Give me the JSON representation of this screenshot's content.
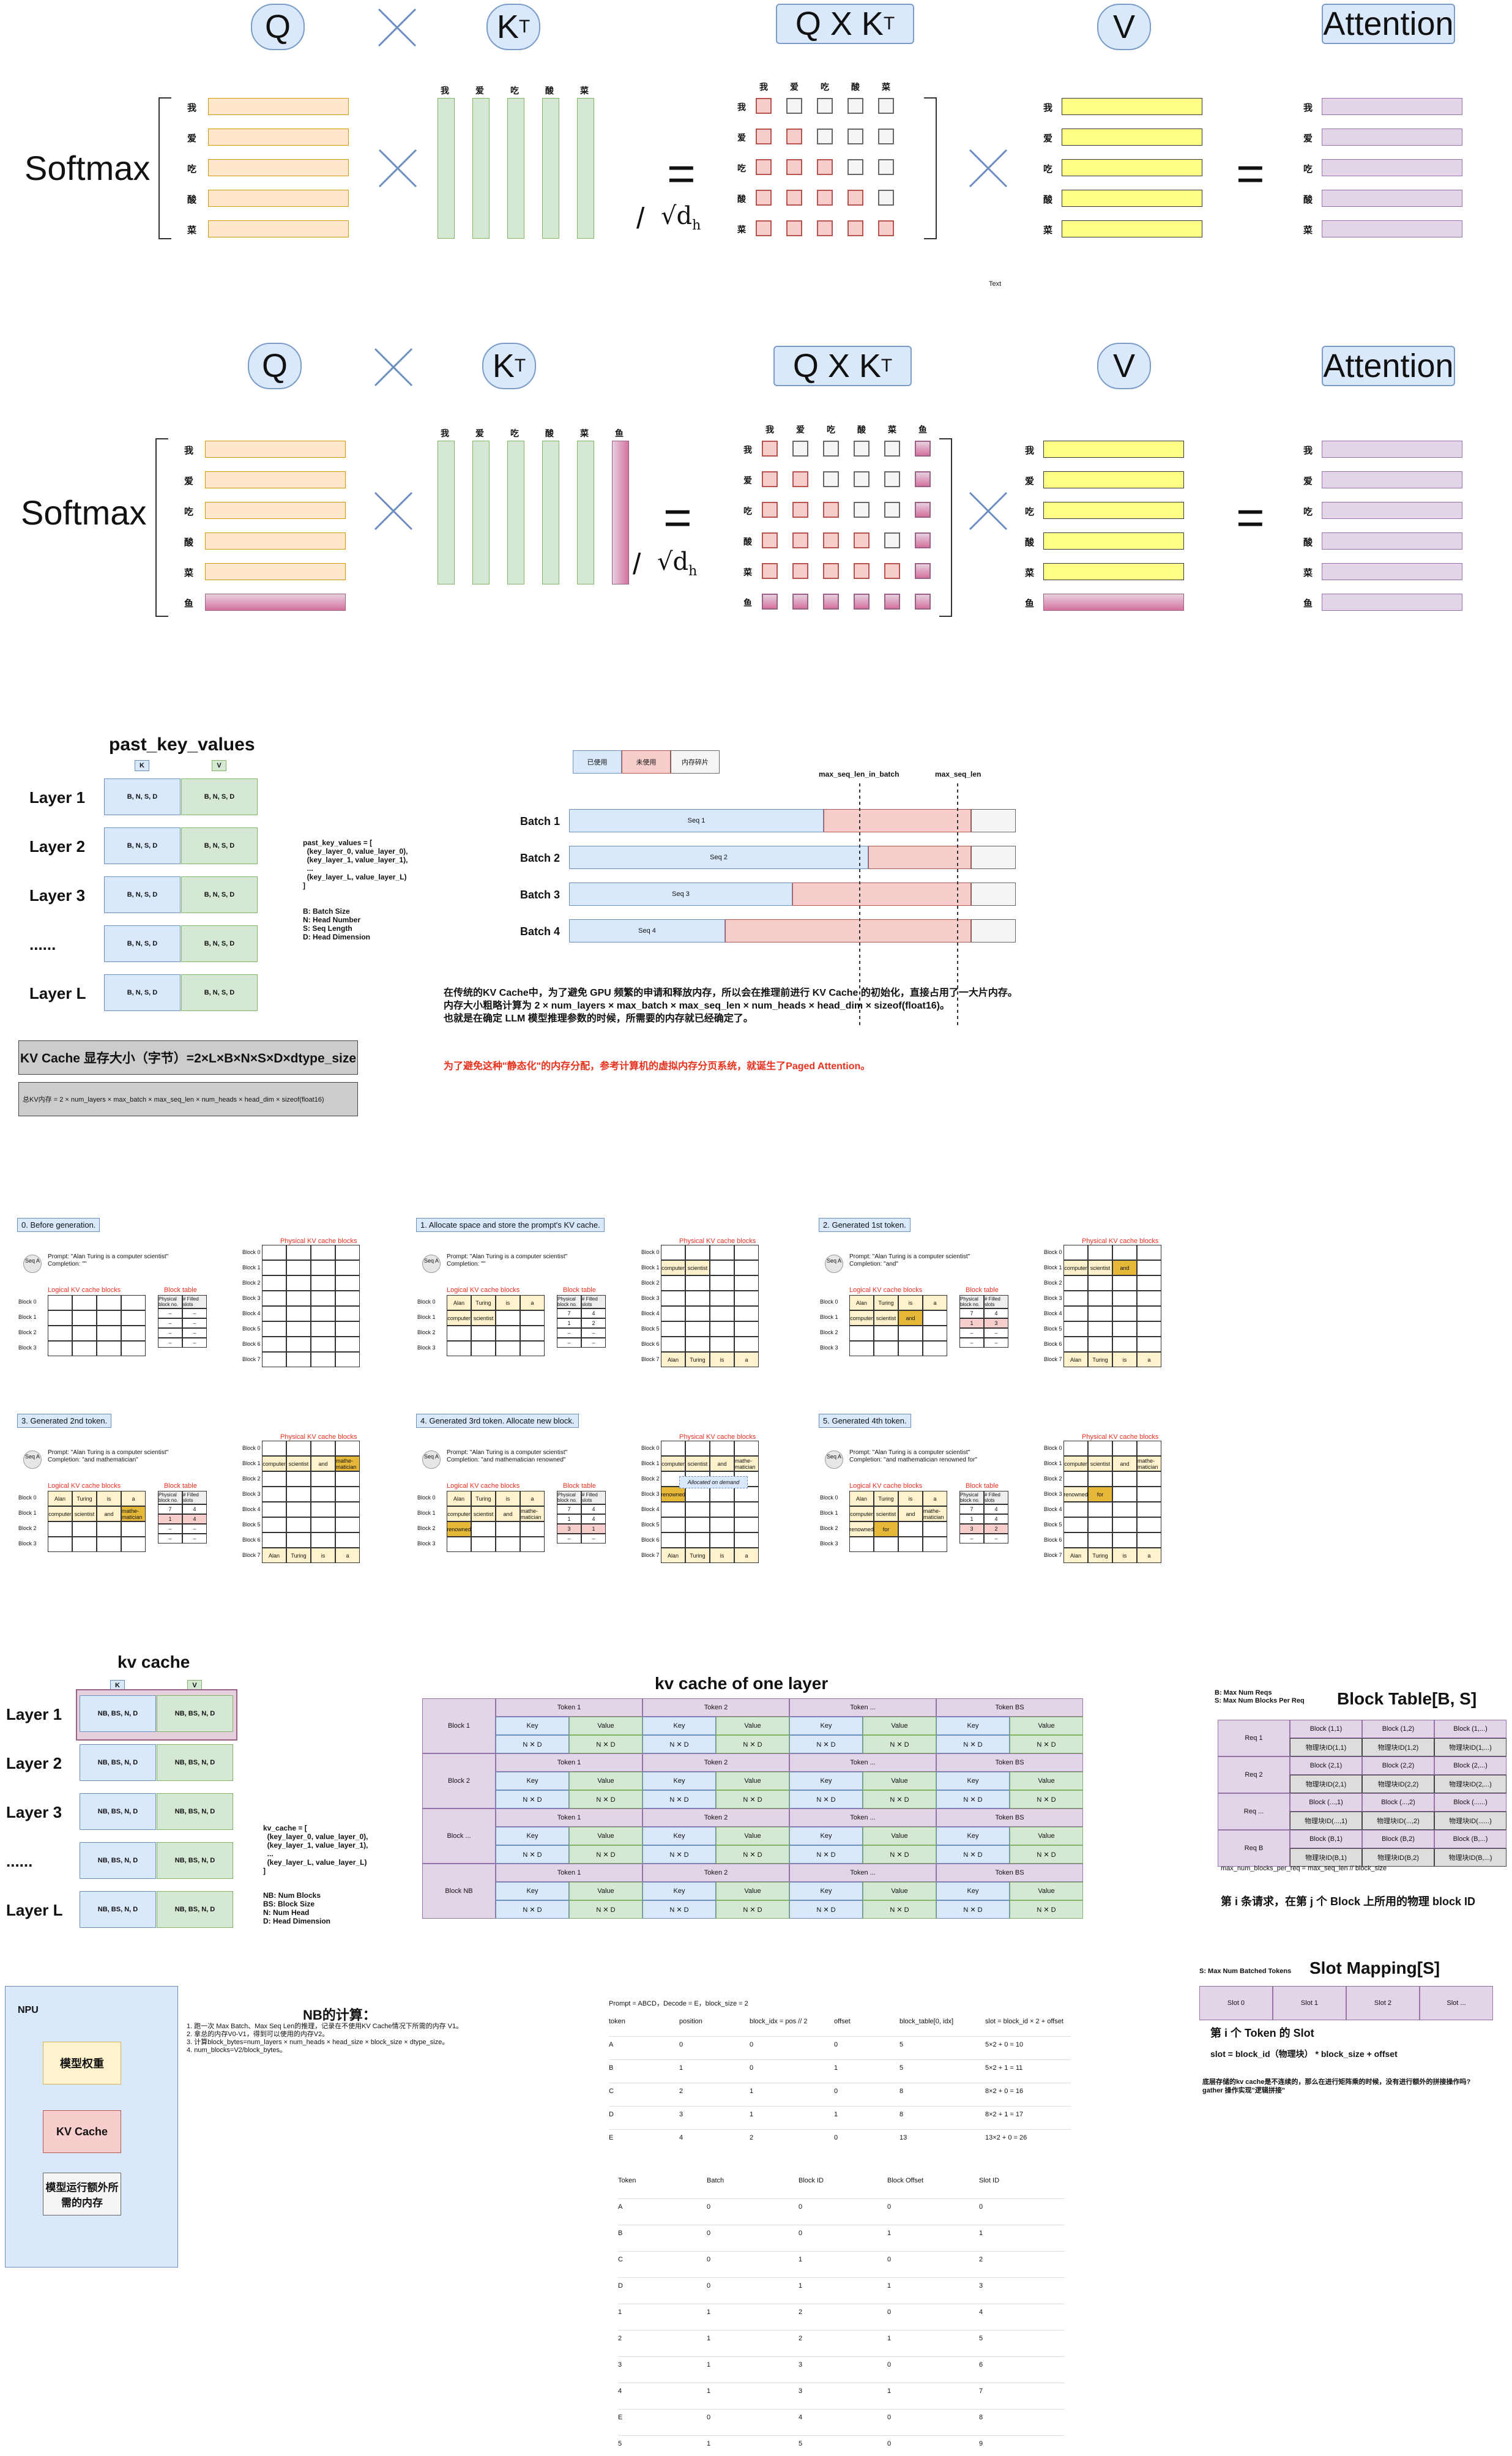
{
  "attn1": {
    "q": "Q",
    "kt": "K",
    "kt_sup": "T",
    "qxkt": "Q X K",
    "qxkt_sup": "T",
    "v": "V",
    "attention": "Attention",
    "softmax": "Softmax",
    "slash": "/",
    "sqrt": "√d",
    "sqrt_sub": "h",
    "rows": [
      "我",
      "爱",
      "吃",
      "酸",
      "菜"
    ],
    "cols": [
      "我",
      "爱",
      "吃",
      "酸",
      "菜"
    ],
    "text_note": "Text"
  },
  "attn2": {
    "q": "Q",
    "kt": "K",
    "kt_sup": "T",
    "qxkt": "Q X K",
    "qxkt_sup": "T",
    "v": "V",
    "attention": "Attention",
    "softmax": "Softmax",
    "slash": "/",
    "sqrt": "√d",
    "sqrt_sub": "h",
    "rows": [
      "我",
      "爱",
      "吃",
      "酸",
      "菜",
      "鱼"
    ],
    "cols": [
      "我",
      "爱",
      "吃",
      "酸",
      "菜",
      "鱼"
    ]
  },
  "pkv": {
    "title": "past_key_values",
    "k": "K",
    "v": "V",
    "layers": [
      "Layer 1",
      "Layer 2",
      "Layer 3",
      "......",
      "Layer L"
    ],
    "cell": "B, N, S, D",
    "code": [
      "past_key_values = [",
      "  (key_layer_0, value_layer_0),",
      "  (key_layer_1, value_layer_1),",
      "  ...",
      "  (key_layer_L, value_layer_L)",
      "]"
    ],
    "legend": [
      "B: Batch Size",
      "N: Head Number",
      "S: Seq Length",
      "D: Head Dimension"
    ],
    "size_title": "KV Cache 显存大小（字节）=2×L×B×N×S×D×dtype_size",
    "size_formula": "总KV内存 = 2 × num_layers × max_batch × max_seq_len × num_heads × head_dim × sizeof(float16)"
  },
  "batch": {
    "legend": [
      "已使用",
      "未使用",
      "内存碎片"
    ],
    "max_in_batch": "max_seq_len_in_batch",
    "max_seq": "max_seq_len",
    "rows": [
      {
        "label": "Batch 1",
        "seq": "Seq 1",
        "used": 0.57,
        "unused": 0.33
      },
      {
        "label": "Batch 2",
        "seq": "Seq 2",
        "used": 0.67,
        "unused": 0.23
      },
      {
        "label": "Batch 3",
        "seq": "Seq 3",
        "used": 0.5,
        "unused": 0.4
      },
      {
        "label": "Batch 4",
        "seq": "Seq 4",
        "used": 0.35,
        "unused": 0.55
      }
    ],
    "para": [
      "在传统的KV Cache中，为了避免 GPU 频繁的申请和释放内存，所以会在推理前进行 KV Cache 的初始化，直接占用了一大片内存。",
      "内存大小粗略计算为 2 × num_layers × max_batch × max_seq_len × num_heads × head_dim × sizeof(float16)。",
      "也就是在确定 LLM 模型推理参数的时候，所需要的内存就已经确定了。"
    ],
    "red": "为了避免这种\"静态化\"的内存分配，参考计算机的虚拟内存分页系统，就诞生了Paged Attention。"
  },
  "paged": {
    "panels": [
      {
        "title": "0. Before generation.",
        "completion": "Completion: \"\""
      },
      {
        "title": "1. Allocate space and store the prompt's KV cache.",
        "completion": "Completion: \"\""
      },
      {
        "title": "2. Generated 1st token.",
        "completion": "Completion: \"and\""
      },
      {
        "title": "3. Generated 2nd token.",
        "completion": "Completion: \"and mathematician\""
      },
      {
        "title": "4. Generated 3rd token. Allocate new block.",
        "completion": "Completion: \"and mathematician renowned\""
      },
      {
        "title": "5. Generated 4th token.",
        "completion": "Completion: \"and mathematician renowned for\""
      }
    ],
    "seq": "Seq",
    "seq_a": "A",
    "prompt": "Prompt: \"Alan Turing is a computer scientist\"",
    "physical": "Physical KV cache blocks",
    "logical": "Logical KV cache blocks",
    "block_table": "Block table",
    "phys_col": "Physical block no.",
    "filled_col": "# Filled slots",
    "alloc": "Allocated on demand",
    "blocks": [
      "Block 0",
      "Block 1",
      "Block 2",
      "Block 3",
      "Block 4",
      "Block 5",
      "Block 6",
      "Block 7"
    ],
    "lblocks": [
      "Block 0",
      "Block 1",
      "Block 2",
      "Block 3"
    ],
    "words1": [
      "Alan",
      "Turing",
      "is",
      "a"
    ],
    "words2": [
      "computer",
      "scientist",
      "and",
      "mathe-matician"
    ],
    "words3": [
      "renowned",
      "for"
    ]
  },
  "kvc": {
    "title": "kv cache",
    "k": "K",
    "v": "V",
    "layers": [
      "Layer 1",
      "Layer 2",
      "Layer 3",
      "......",
      "Layer L"
    ],
    "cell": "NB, BS, N, D",
    "code": [
      "kv_cache = [",
      "  (key_layer_0, value_layer_0),",
      "  (key_layer_1, value_layer_1),",
      "  ...",
      "  (key_layer_L, value_layer_L)",
      "]"
    ],
    "legend": [
      "NB: Num Blocks",
      "BS: Block Size",
      "N: Num Head",
      "D: Head Dimension"
    ]
  },
  "onelayer": {
    "title": "kv cache of one layer",
    "blocks": [
      "Block 1",
      "Block 2",
      "Block ...",
      "Block NB"
    ],
    "tokens": [
      "Token 1",
      "Token 2",
      "Token ...",
      "Token BS"
    ],
    "key": "Key",
    "value": "Value",
    "nd": "N ✕ D"
  },
  "btable": {
    "title": "Block Table[B, S]",
    "notes": [
      "B: Max Num Reqs",
      "S: Max Num Blocks Per Req"
    ],
    "reqs": [
      "Req 1",
      "Req 2",
      "Req ...",
      "Req B"
    ],
    "rows": [
      [
        [
          "Block (1,1)",
          "物理块ID(1,1)"
        ],
        [
          "Block (1,2)",
          "物理块ID(1,2)"
        ],
        [
          "Block (1,...)",
          "物理块ID(1,...)"
        ]
      ],
      [
        [
          "Block (2,1)",
          "物理块ID(2,1)"
        ],
        [
          "Block (2,2)",
          "物理块ID(2,2)"
        ],
        [
          "Block (2,...)",
          "物理块ID(2,...)"
        ]
      ],
      [
        [
          "Block (...,1)",
          "物理块ID(...,1)"
        ],
        [
          "Block (...,2)",
          "物理块ID(...,2)"
        ],
        [
          "Block (......)",
          "物理块ID(......)"
        ]
      ],
      [
        [
          "Block (B,1)",
          "物理块ID(B,1)"
        ],
        [
          "Block (B,2)",
          "物理块ID(B,2)"
        ],
        [
          "Block (B,...)",
          "物理块ID(B,...)"
        ]
      ]
    ],
    "formula": "max_num_blocks_per_req = max_seq_len // block_size",
    "caption": "第 i 条请求，在第 j 个 Block 上所用的物理 block ID"
  },
  "npu": {
    "title": "NPU",
    "items": [
      "模型权重",
      "KV Cache",
      "模型运行额外所需的内存"
    ]
  },
  "nb": {
    "title": "NB的计算：",
    "lines": [
      "1. 跑一次 Max Batch、Max Seq Len的推理，记录在不使用KV Cache情况下所需的内存 V1。",
      "2. 拿总的内存V0-V1，得到可以使用的内存V2。",
      "3. 计算block_bytes=num_layers × num_heads × head_size × block_size × dtype_size。",
      "4. num_blocks=V2/block_bytes。"
    ]
  },
  "t1": {
    "caption": "Prompt = ABCD，Decode = E，block_size = 2",
    "headers": [
      "token",
      "position",
      "block_idx = pos // 2",
      "offset",
      "block_table[0, idx]",
      "slot = block_id × 2 + offset"
    ],
    "rows": [
      [
        "A",
        "0",
        "0",
        "0",
        "5",
        "5×2 + 0 = 10"
      ],
      [
        "B",
        "1",
        "0",
        "1",
        "5",
        "5×2 + 1 = 11"
      ],
      [
        "C",
        "2",
        "1",
        "0",
        "8",
        "8×2 + 0 = 16"
      ],
      [
        "D",
        "3",
        "1",
        "1",
        "8",
        "8×2 + 1 = 17"
      ],
      [
        "E",
        "4",
        "2",
        "0",
        "13",
        "13×2 + 0 = 26"
      ]
    ]
  },
  "t2": {
    "headers": [
      "Token",
      "Batch",
      "Block ID",
      "Block Offset",
      "Slot ID"
    ],
    "rows": [
      [
        "A",
        "0",
        "0",
        "0",
        "0"
      ],
      [
        "B",
        "0",
        "0",
        "1",
        "1"
      ],
      [
        "C",
        "0",
        "1",
        "0",
        "2"
      ],
      [
        "D",
        "0",
        "1",
        "1",
        "3"
      ],
      [
        "1",
        "1",
        "2",
        "0",
        "4"
      ],
      [
        "2",
        "1",
        "2",
        "1",
        "5"
      ],
      [
        "3",
        "1",
        "3",
        "0",
        "6"
      ],
      [
        "4",
        "1",
        "3",
        "1",
        "7"
      ],
      [
        "E",
        "0",
        "4",
        "0",
        "8"
      ],
      [
        "5",
        "1",
        "5",
        "0",
        "9"
      ]
    ]
  },
  "slot": {
    "title": "Slot Mapping[S]",
    "note": "S: Max Num Batched Tokens",
    "slots": [
      "Slot 0",
      "Slot 1",
      "Slot 2",
      "Slot ..."
    ],
    "caption": "第 i 个 Token 的 Slot",
    "formula": "slot = block_id（物理块） * block_size + offset",
    "q": [
      "底层存储的kv cache是不连续的，那么在进行矩阵乘的时候，没有进行额外的拼接操作吗?",
      "gather 操作实现\"逻辑拼接\""
    ]
  }
}
